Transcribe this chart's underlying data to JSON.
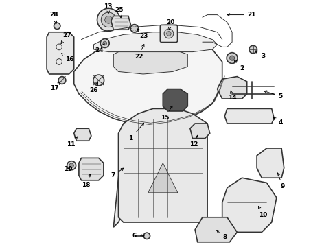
{
  "title": "",
  "background_color": "#ffffff",
  "line_color": "#333333",
  "label_color": "#000000",
  "figsize": [
    4.89,
    3.6
  ],
  "dpi": 100
}
